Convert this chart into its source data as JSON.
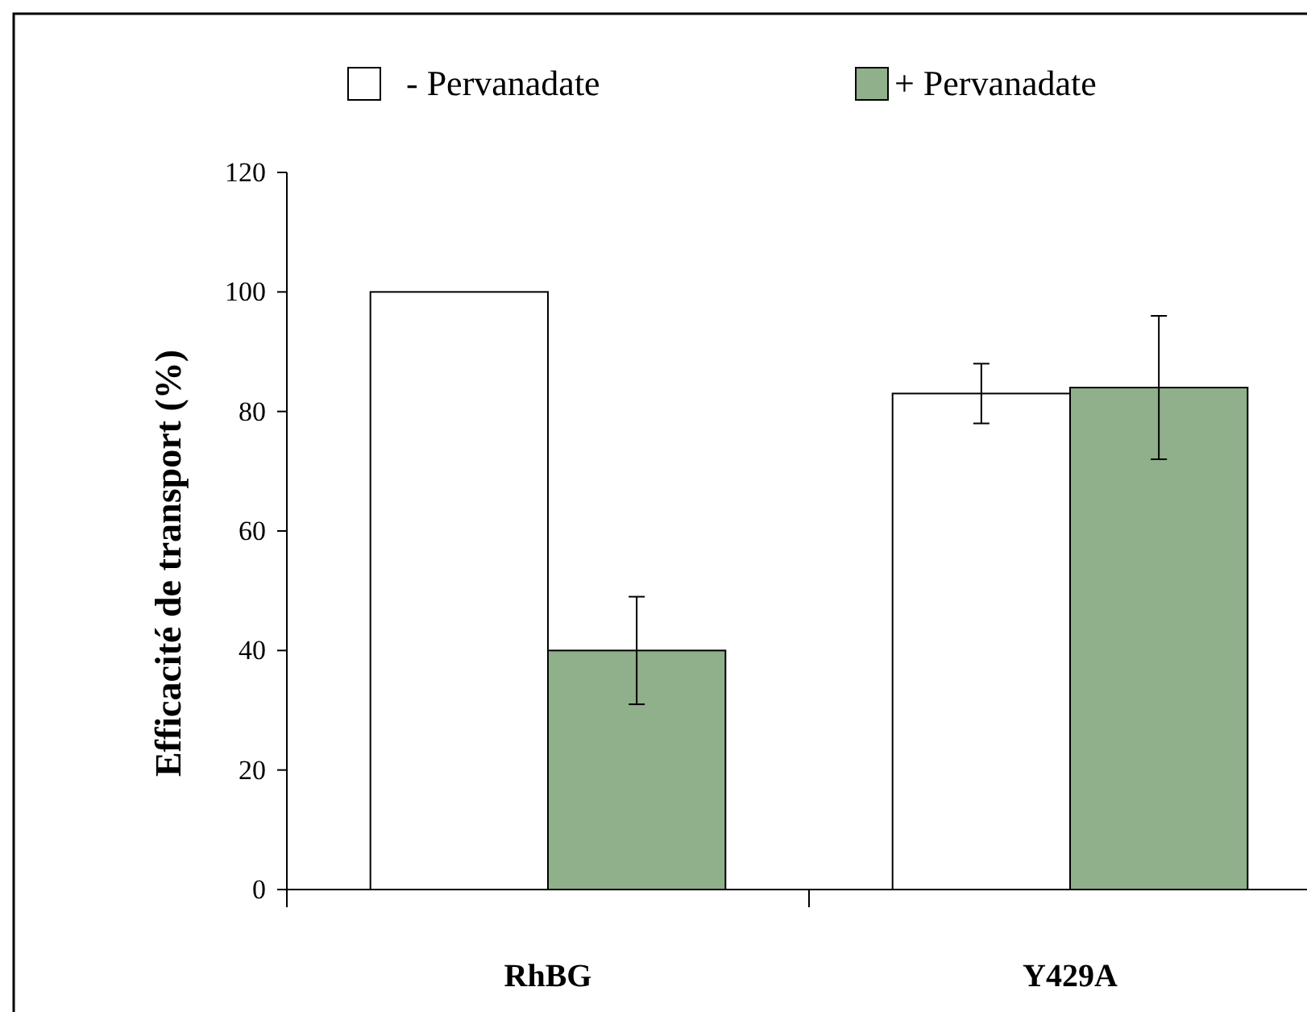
{
  "chart_data": {
    "type": "bar",
    "ylabel": "Efficacité de transport (%)",
    "categories": [
      "RhBG",
      "Y429A"
    ],
    "series": [
      {
        "name": "- Pervanadate",
        "color": "#ffffff",
        "values": [
          100,
          83
        ],
        "errors": [
          null,
          5
        ]
      },
      {
        "name": "+ Pervanadate",
        "color": "#8fb08a",
        "values": [
          40,
          84
        ],
        "errors": [
          9,
          12
        ]
      }
    ],
    "ylim": [
      0,
      120
    ],
    "yticks": [
      0,
      20,
      40,
      60,
      80,
      100,
      120
    ],
    "grid": false,
    "legend": "top"
  }
}
